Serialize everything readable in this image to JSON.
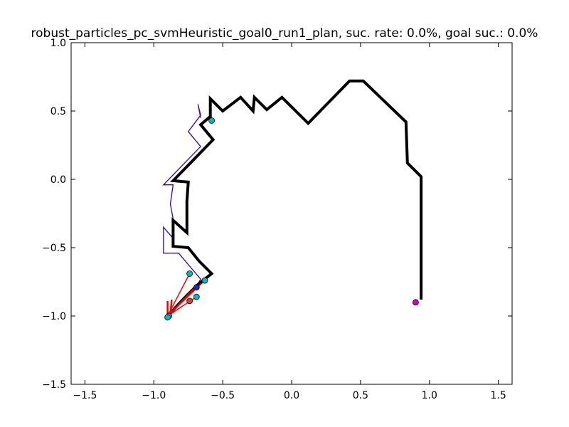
{
  "chart_data": {
    "type": "line",
    "title": "robust_particles_pc_svmHeuristic_goal0_run1_plan, suc. rate: 0.0%, goal suc.: 0.0%",
    "xlabel": "",
    "ylabel": "",
    "xlim": [
      -1.6,
      1.6
    ],
    "ylim": [
      -1.5,
      1.0
    ],
    "grid": false,
    "xticks": [
      -1.5,
      -1.0,
      -0.5,
      0.0,
      0.5,
      1.0,
      1.5
    ],
    "xtick_labels": [
      "−1.5",
      "−1.0",
      "−0.5",
      "0.0",
      "0.5",
      "1.0",
      "1.5"
    ],
    "yticks": [
      1.0,
      0.5,
      0.0,
      -0.5,
      -1.0,
      -1.5
    ],
    "ytick_labels": [
      "1.0",
      "0.5",
      "0.0",
      "−0.5",
      "−1.0",
      "−1.5"
    ],
    "series": [
      {
        "color": "#3300cc",
        "width": 1.3,
        "points": [
          [
            -0.66,
            0.45
          ],
          [
            -0.68,
            0.55
          ],
          [
            -0.66,
            0.47
          ],
          [
            -0.75,
            0.35
          ],
          [
            -0.66,
            0.24
          ],
          [
            -0.93,
            -0.04
          ],
          [
            -0.86,
            -0.04
          ],
          [
            -0.88,
            -0.18
          ],
          [
            -0.86,
            -0.29
          ],
          [
            -0.86,
            -0.42
          ],
          [
            -0.87,
            -0.42
          ],
          [
            -0.93,
            -0.35
          ],
          [
            -0.93,
            -0.54
          ],
          [
            -0.82,
            -0.54
          ],
          [
            -0.66,
            -0.73
          ],
          [
            -0.7,
            -0.8
          ]
        ]
      },
      {
        "color": "#000000",
        "width": 4,
        "points": [
          [
            -0.9,
            -1.0
          ],
          [
            -0.78,
            -0.87
          ],
          [
            -0.68,
            -0.77
          ],
          [
            -0.58,
            -0.69
          ],
          [
            -0.67,
            -0.6
          ],
          [
            -0.75,
            -0.5
          ],
          [
            -0.86,
            -0.49
          ],
          [
            -0.86,
            -0.3
          ],
          [
            -0.76,
            -0.39
          ],
          [
            -0.76,
            -0.16
          ],
          [
            -0.75,
            -0.02
          ],
          [
            -0.86,
            -0.01
          ],
          [
            -0.85,
            0.0
          ],
          [
            -0.57,
            0.29
          ],
          [
            -0.66,
            0.4
          ],
          [
            -0.59,
            0.46
          ],
          [
            -0.59,
            0.59
          ],
          [
            -0.5,
            0.5
          ],
          [
            -0.37,
            0.6
          ],
          [
            -0.28,
            0.5
          ],
          [
            -0.27,
            0.6
          ],
          [
            -0.18,
            0.51
          ],
          [
            -0.07,
            0.6
          ],
          [
            0.12,
            0.41
          ],
          [
            0.42,
            0.72
          ],
          [
            0.52,
            0.72
          ],
          [
            0.83,
            0.42
          ],
          [
            0.84,
            0.12
          ],
          [
            0.94,
            0.02
          ],
          [
            0.94,
            -0.88
          ]
        ]
      },
      {
        "color": "#ff0000",
        "width": 1.5,
        "points": [
          [
            -0.9,
            -1.0
          ],
          [
            -0.74,
            -0.69
          ]
        ]
      },
      {
        "color": "#ff0000",
        "width": 1.5,
        "points": [
          [
            -0.9,
            -1.0
          ],
          [
            -0.69,
            -0.86
          ]
        ]
      },
      {
        "color": "#ff0000",
        "width": 1.5,
        "points": [
          [
            -0.9,
            -1.0
          ],
          [
            -0.63,
            -0.74
          ]
        ]
      },
      {
        "color": "#ff0000",
        "width": 1.5,
        "points": [
          [
            -0.9,
            -1.0
          ],
          [
            -0.7,
            -0.79
          ]
        ]
      },
      {
        "color": "#ff0000",
        "width": 2.5,
        "points": [
          [
            -0.9,
            -1.0
          ],
          [
            -0.9,
            -0.89
          ]
        ]
      },
      {
        "color": "#ff0000",
        "width": 2.5,
        "points": [
          [
            -0.88,
            -0.99
          ],
          [
            -0.87,
            -0.88
          ]
        ]
      }
    ],
    "markers": [
      {
        "x": -0.58,
        "y": 0.43,
        "color": "#00bbbb"
      },
      {
        "x": -0.74,
        "y": -0.69,
        "color": "#00bbbb"
      },
      {
        "x": -0.63,
        "y": -0.74,
        "color": "#00bbbb"
      },
      {
        "x": -0.69,
        "y": -0.79,
        "color": "#2222cc"
      },
      {
        "x": -0.69,
        "y": -0.86,
        "color": "#00bbbb"
      },
      {
        "x": -0.74,
        "y": -0.89,
        "color": "#cc4444"
      },
      {
        "x": -0.89,
        "y": -1.0,
        "color": "#00bbbb"
      },
      {
        "x": -0.9,
        "y": -1.01,
        "color": "#00bbbb"
      },
      {
        "x": 0.9,
        "y": -0.9,
        "color": "#cc00cc"
      }
    ]
  }
}
